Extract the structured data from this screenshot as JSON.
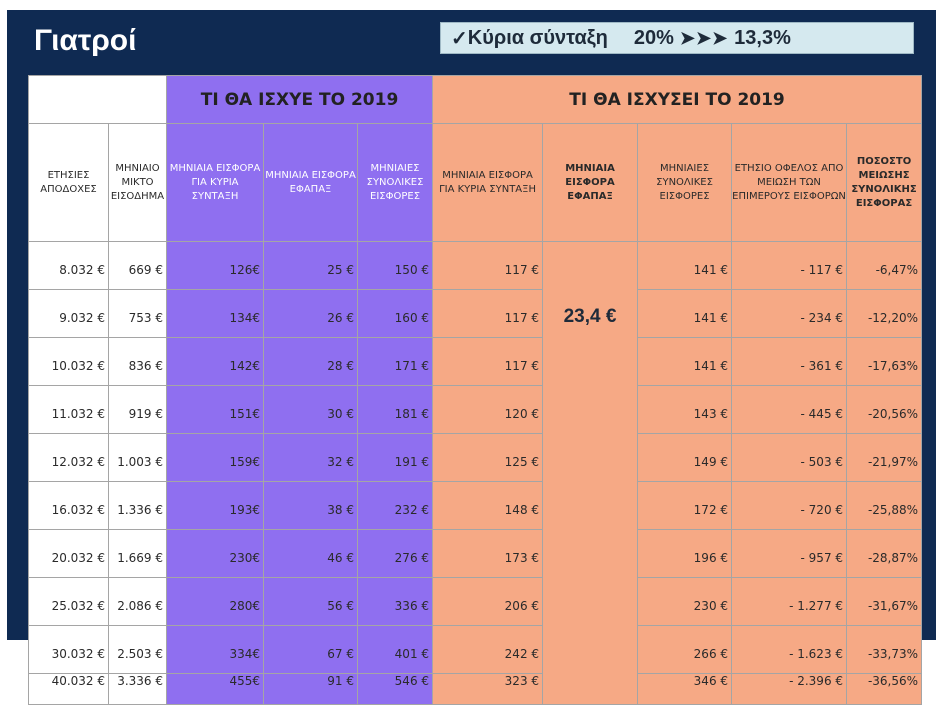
{
  "title": "Γιατροί",
  "callout": {
    "check": "✓",
    "label": "Κύρια σύνταξη",
    "from": "20%",
    "arrows": "➤➤➤",
    "to": "13,3%"
  },
  "groups": {
    "blank": "",
    "old": "ΤΙ ΘΑ ΙΣΧΥΕ ΤΟ 2019",
    "new": "ΤΙ ΘΑ ΙΣΧΥΣΕΙ ΤΟ 2019"
  },
  "headers": [
    "ΕΤΗΣΙΕΣ ΑΠΟΔΟΧΕΣ",
    "ΜΗΝΙΑΙΟ ΜΙΚΤΟ ΕΙΣΟΔΗΜΑ",
    "ΜΗΝΙΑΙΑ ΕΙΣΦΟΡΑ ΓΙΑ ΚΥΡΙΑ ΣΥΝΤΑΞΗ",
    "ΜΗΝΙΑΙΑ ΕΙΣΦΟΡΑ ΕΦΑΠΑΞ",
    "ΜΗΝΙΑΙΕΣ ΣΥΝΟΛΙΚΕΣ ΕΙΣΦΟΡΕΣ",
    "ΜΗΝΙΑΙΑ ΕΙΣΦΟΡΑ ΓΙΑ ΚΥΡΙΑ ΣΥΝΤΑΞΗ",
    "ΜΗΝΙΑΙΑ ΕΙΣΦΟΡΑ ΕΦΑΠΑΞ",
    "ΜΗΝΙΑΙΕΣ ΣΥΝΟΛΙΚΕΣ ΕΙΣΦΟΡΕΣ",
    "ΕΤΗΣΙΟ ΟΦΕΛΟΣ ΑΠΟ ΜΕΙΩΣΗ ΤΩΝ ΕΠΙΜΕΡΟΥΣ ΕΙΣΦΟΡΩΝ",
    "ΠΟΣΟΣΤΟ ΜΕΙΩΣΗΣ ΣΥΝΟΛΙΚΗΣ ΕΙΣΦΟΡΑΣ"
  ],
  "efapax_new": "23,4 €",
  "rows": [
    [
      "8.032 €",
      "669 €",
      "126€",
      "25 €",
      "150 €",
      "117 €",
      "141 €",
      "-  117 €",
      "-6,47%"
    ],
    [
      "9.032 €",
      "753 €",
      "134€",
      "26 €",
      "160 €",
      "117 €",
      "141 €",
      "-  234 €",
      "-12,20%"
    ],
    [
      "10.032 €",
      "836 €",
      "142€",
      "28 €",
      "171 €",
      "117 €",
      "141 €",
      "-  361 €",
      "-17,63%"
    ],
    [
      "11.032 €",
      "919 €",
      "151€",
      "30 €",
      "181 €",
      "120 €",
      "143 €",
      "-  445 €",
      "-20,56%"
    ],
    [
      "12.032 €",
      "1.003 €",
      "159€",
      "32 €",
      "191 €",
      "125 €",
      "149 €",
      "-  503 €",
      "-21,97%"
    ],
    [
      "16.032 €",
      "1.336 €",
      "193€",
      "38 €",
      "232 €",
      "148 €",
      "172 €",
      "-  720 €",
      "-25,88%"
    ],
    [
      "20.032 €",
      "1.669 €",
      "230€",
      "46 €",
      "276 €",
      "173 €",
      "196 €",
      "-  957 €",
      "-28,87%"
    ],
    [
      "25.032 €",
      "2.086 €",
      "280€",
      "56 €",
      "336 €",
      "206 €",
      "230 €",
      "-  1.277 €",
      "-31,67%"
    ],
    [
      "30.032 €",
      "2.503 €",
      "334€",
      "67 €",
      "401 €",
      "242 €",
      "266 €",
      "-  1.623 €",
      "-33,73%"
    ],
    [
      "40.032 €",
      "3.336 €",
      "455€",
      "91 €",
      "546 €",
      "323 €",
      "346 €",
      "-  2.396 €",
      "-36,56%"
    ]
  ]
}
